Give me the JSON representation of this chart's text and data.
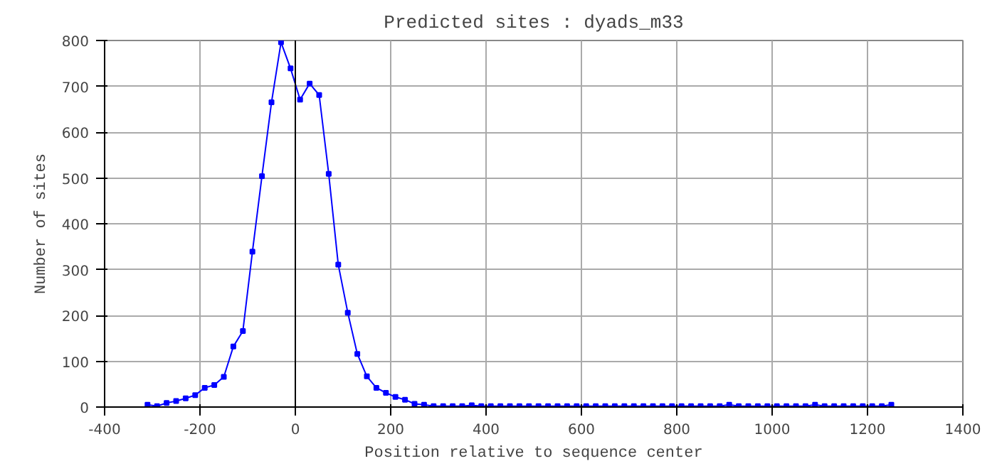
{
  "chart_data": {
    "type": "line",
    "title": "Predicted sites : dyads_m33",
    "xlabel": "Position relative to sequence center",
    "ylabel": "Number of sites",
    "x": [
      -310,
      -290,
      -270,
      -250,
      -230,
      -210,
      -190,
      -170,
      -150,
      -130,
      -110,
      -90,
      -70,
      -50,
      -30,
      -10,
      10,
      30,
      50,
      70,
      90,
      110,
      130,
      150,
      170,
      190,
      210,
      230,
      250,
      270,
      290,
      310,
      330,
      350,
      370,
      390,
      410,
      430,
      450,
      470,
      490,
      510,
      530,
      550,
      570,
      590,
      610,
      630,
      650,
      670,
      690,
      710,
      730,
      750,
      770,
      790,
      810,
      830,
      850,
      870,
      890,
      910,
      930,
      950,
      970,
      990,
      1010,
      1030,
      1050,
      1070,
      1090,
      1110,
      1130,
      1150,
      1170,
      1190,
      1210,
      1230,
      1250
    ],
    "series": [
      {
        "color": "#0000ff",
        "values": [
          5,
          2,
          9,
          13,
          19,
          26,
          42,
          48,
          66,
          132,
          166,
          339,
          504,
          665,
          796,
          739,
          671,
          706,
          681,
          509,
          311,
          206,
          116,
          67,
          42,
          31,
          22,
          16,
          7,
          5,
          2,
          2,
          2,
          2,
          4,
          2,
          2,
          2,
          2,
          2,
          2,
          2,
          2,
          2,
          2,
          2,
          2,
          2,
          2,
          2,
          2,
          2,
          2,
          2,
          2,
          2,
          2,
          2,
          2,
          2,
          2,
          5,
          2,
          2,
          2,
          2,
          2,
          2,
          2,
          2,
          5,
          2,
          2,
          2,
          2,
          2,
          2,
          2,
          5
        ]
      }
    ],
    "xlim": [
      -400,
      1400
    ],
    "xticks": [
      -400,
      -200,
      0,
      200,
      400,
      600,
      800,
      1000,
      1200,
      1400
    ],
    "ylim": [
      0,
      800
    ],
    "yticks": [
      0,
      100,
      200,
      300,
      400,
      500,
      600,
      700,
      800
    ],
    "ref_lines": [
      {
        "axis": "x",
        "value": 0,
        "color": "#000000"
      }
    ],
    "grid": true,
    "marker": "square",
    "line_style": "solid"
  }
}
